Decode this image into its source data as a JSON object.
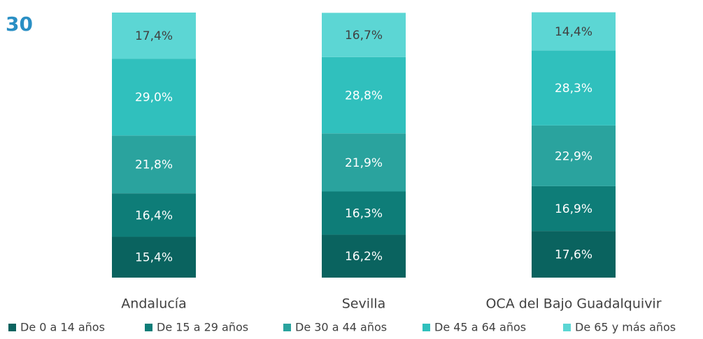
{
  "page_label": "30",
  "chart_data": {
    "type": "stacked_bar",
    "categories": [
      "Andalucía",
      "Sevilla",
      "OCA del Bajo Guadalquivir"
    ],
    "ylim": [
      0,
      100
    ],
    "series": [
      {
        "name": "De 0 a 14 años",
        "color": "#0a635f",
        "label_color": "#ffffff",
        "values": [
          15.4,
          16.2,
          17.6
        ],
        "value_labels": [
          "15,4%",
          "16,2%",
          "17,6%"
        ]
      },
      {
        "name": "De 15 a 29 años",
        "color": "#0e7d78",
        "label_color": "#ffffff",
        "values": [
          16.4,
          16.3,
          16.9
        ],
        "value_labels": [
          "16,4%",
          "16,3%",
          "16,9%"
        ]
      },
      {
        "name": "De 30 a 44 años",
        "color": "#2aa39e",
        "label_color": "#ffffff",
        "values": [
          21.8,
          21.9,
          22.9
        ],
        "value_labels": [
          "21,8%",
          "21,9%",
          "22,9%"
        ]
      },
      {
        "name": "De 45 a 64 años",
        "color": "#30c0bd",
        "label_color": "#ffffff",
        "values": [
          29.0,
          28.8,
          28.3
        ],
        "value_labels": [
          "29,0%",
          "28,8%",
          "28,3%"
        ]
      },
      {
        "name": "De 65 y más años",
        "color": "#5cd6d4",
        "label_color": "#404040",
        "values": [
          17.4,
          16.7,
          14.4
        ],
        "value_labels": [
          "17,4%",
          "16,7%",
          "14,4%"
        ]
      }
    ]
  }
}
